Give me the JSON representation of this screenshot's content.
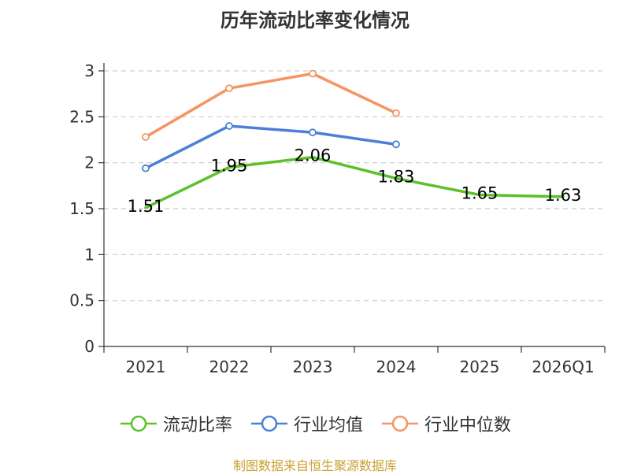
{
  "chart_data": {
    "type": "line",
    "title": "历年流动比率变化情况",
    "categories": [
      "2021",
      "2022",
      "2023",
      "2024",
      "2025",
      "2026Q1"
    ],
    "ylim": [
      0,
      3
    ],
    "yticks": [
      0,
      0.5,
      1,
      1.5,
      2,
      2.5,
      3
    ],
    "ytick_labels": [
      "0",
      "0.5",
      "1",
      "1.5",
      "2",
      "2.5",
      "3"
    ],
    "grid": true,
    "legend_position": "bottom",
    "series": [
      {
        "name": "流动比率",
        "color": "#5cc12a",
        "values": [
          1.51,
          1.95,
          2.06,
          1.83,
          1.65,
          1.63
        ],
        "labels": [
          "1.51",
          "1.95",
          "2.06",
          "1.83",
          "1.65",
          "1.63"
        ],
        "show_markers": false,
        "show_labels": true
      },
      {
        "name": "行业均值",
        "color": "#4c7fd8",
        "values": [
          1.94,
          2.4,
          2.33,
          2.2,
          null,
          null
        ],
        "show_markers": true,
        "show_labels": false
      },
      {
        "name": "行业中位数",
        "color": "#f59461",
        "values": [
          2.28,
          2.81,
          2.97,
          2.54,
          null,
          null
        ],
        "show_markers": true,
        "show_labels": false
      }
    ]
  },
  "source": "制图数据来自恒生聚源数据库"
}
